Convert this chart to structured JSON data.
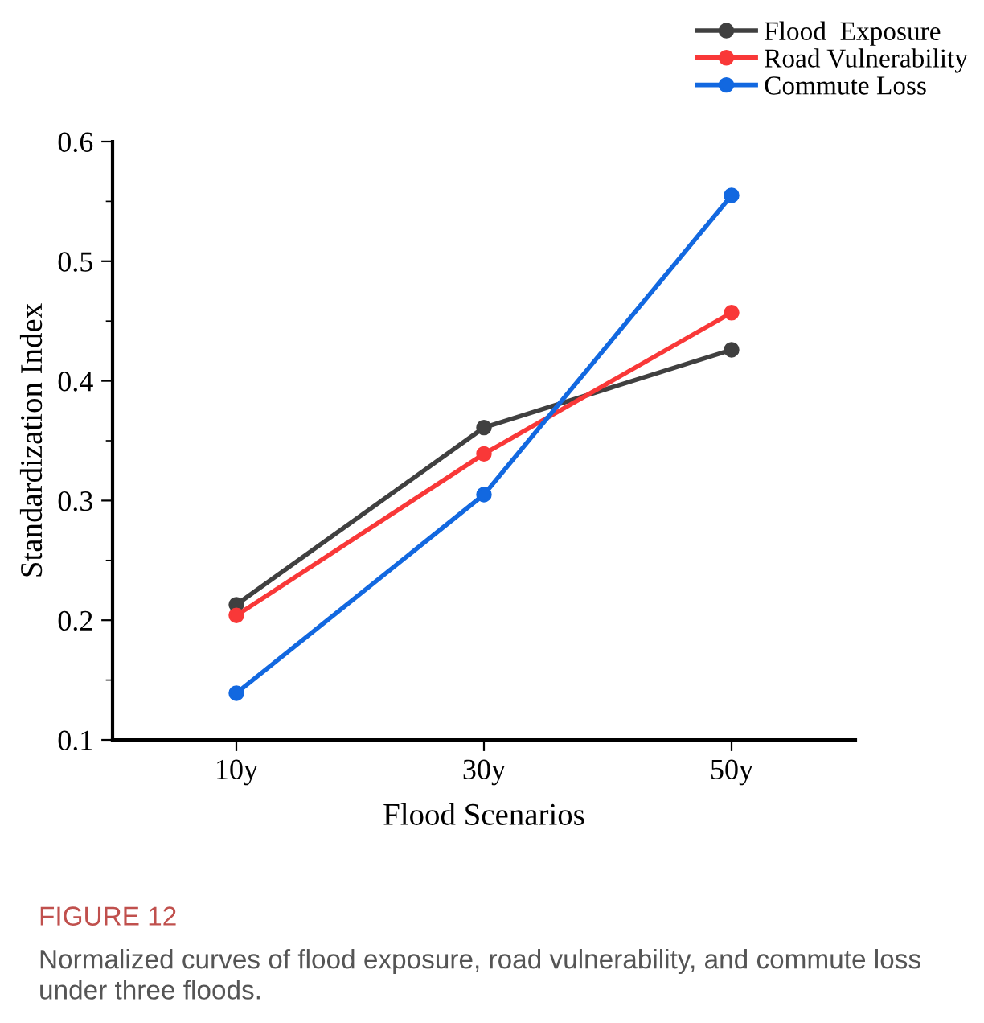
{
  "chart_data": {
    "type": "line",
    "xlabel": "Flood Scenarios",
    "ylabel": "Standardization Index",
    "categories": [
      "10y",
      "30y",
      "50y"
    ],
    "series": [
      {
        "name": "Flood  Exposure",
        "color": "#404040",
        "values": [
          0.213,
          0.361,
          0.426
        ]
      },
      {
        "name": "Road Vulnerability",
        "color": "#f93838",
        "values": [
          0.204,
          0.339,
          0.457
        ]
      },
      {
        "name": "Commute Loss",
        "color": "#1268e0",
        "values": [
          0.139,
          0.305,
          0.555
        ]
      }
    ],
    "ylim": [
      0.1,
      0.6
    ],
    "yticks": [
      0.1,
      0.2,
      0.3,
      0.4,
      0.5,
      0.6
    ],
    "marker": "circle",
    "line_style": "solid",
    "legend": "top right",
    "grid": false,
    "annotations": [
      "FIGURE 12",
      "Normalized curves of flood exposure, road vulnerability, and commute loss under three floods."
    ]
  }
}
